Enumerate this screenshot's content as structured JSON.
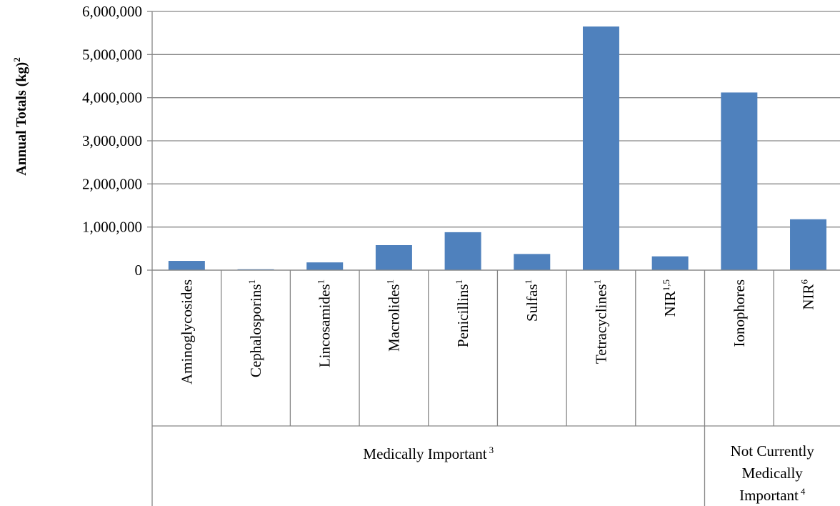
{
  "chart_data": {
    "type": "bar",
    "title": "",
    "xlabel": "",
    "ylabel": "Annual Totals (kg)",
    "ylabel_sup": "2",
    "ylim": [
      0,
      6000000
    ],
    "yticks": [
      0,
      1000000,
      2000000,
      3000000,
      4000000,
      5000000,
      6000000
    ],
    "ytick_labels": [
      "0",
      "1,000,000",
      "2,000,000",
      "3,000,000",
      "4,000,000",
      "5,000,000",
      "6,000,000"
    ],
    "categories": [
      {
        "label": "Aminoglycosides",
        "sup": ""
      },
      {
        "label": "Cephalosporins",
        "sup": "1"
      },
      {
        "label": "Lincosamides",
        "sup": "1"
      },
      {
        "label": "Macrolides",
        "sup": "1"
      },
      {
        "label": "Penicillins",
        "sup": "1"
      },
      {
        "label": "Sulfas",
        "sup": "1"
      },
      {
        "label": "Tetracyclines",
        "sup": "1"
      },
      {
        "label": "NIR",
        "sup": "1,5"
      },
      {
        "label": "Ionophores",
        "sup": ""
      },
      {
        "label": "NIR",
        "sup": "6"
      }
    ],
    "values": [
      215000,
      20000,
      180000,
      580000,
      880000,
      375000,
      5650000,
      320000,
      4120000,
      1180000
    ],
    "groups": [
      {
        "lines": [
          "Medically Important"
        ],
        "sup": "3",
        "count": 8
      },
      {
        "lines": [
          "Not Currently",
          "Medically",
          "Important"
        ],
        "sup": "4",
        "count": 2
      }
    ],
    "bar_color": "#4f81bd",
    "axis_color": "#868686",
    "grid": true,
    "legend": "none"
  }
}
